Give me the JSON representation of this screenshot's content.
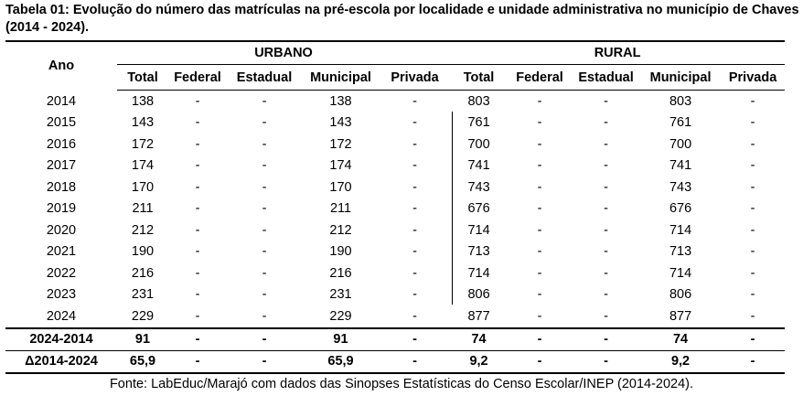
{
  "header": {
    "title": "Tabela 01: Evolução do número das matrículas na pré-escola por localidade e unidade administrativa no município de Chaves (2014 - 2024)."
  },
  "table": {
    "first_column": "Ano",
    "groups": [
      "URBANO",
      "RURAL"
    ],
    "columns": [
      "Total",
      "Federal",
      "Estadual",
      "Municipal",
      "Privada",
      "Total",
      "Federal",
      "Estadual",
      "Municipal",
      "Privada"
    ],
    "rows": [
      [
        "2014",
        "138",
        "-",
        "-",
        "138",
        "-",
        "803",
        "-",
        "-",
        "803",
        "-"
      ],
      [
        "2015",
        "143",
        "-",
        "-",
        "143",
        "-",
        "761",
        "-",
        "-",
        "761",
        "-"
      ],
      [
        "2016",
        "172",
        "-",
        "-",
        "172",
        "-",
        "700",
        "-",
        "-",
        "700",
        "-"
      ],
      [
        "2017",
        "174",
        "-",
        "-",
        "174",
        "-",
        "741",
        "-",
        "-",
        "741",
        "-"
      ],
      [
        "2018",
        "170",
        "-",
        "-",
        "170",
        "-",
        "743",
        "-",
        "-",
        "743",
        "-"
      ],
      [
        "2019",
        "211",
        "-",
        "-",
        "211",
        "-",
        "676",
        "-",
        "-",
        "676",
        "-"
      ],
      [
        "2020",
        "212",
        "-",
        "-",
        "212",
        "-",
        "714",
        "-",
        "-",
        "714",
        "-"
      ],
      [
        "2021",
        "190",
        "-",
        "-",
        "190",
        "-",
        "713",
        "-",
        "-",
        "713",
        "-"
      ],
      [
        "2022",
        "216",
        "-",
        "-",
        "216",
        "-",
        "714",
        "-",
        "-",
        "714",
        "-"
      ],
      [
        "2023",
        "231",
        "-",
        "-",
        "231",
        "-",
        "806",
        "-",
        "-",
        "806",
        "-"
      ],
      [
        "2024",
        "229",
        "-",
        "-",
        "229",
        "-",
        "877",
        "-",
        "-",
        "877",
        "-"
      ]
    ],
    "summary_rows": [
      [
        "2024-2014",
        "91",
        "-",
        "-",
        "91",
        "-",
        "74",
        "-",
        "-",
        "74",
        "-"
      ],
      [
        "Δ2014-2024",
        "65,9",
        "-",
        "-",
        "65,9",
        "-",
        "9,2",
        "-",
        "-",
        "9,2",
        "-"
      ]
    ]
  },
  "footer": {
    "source": "Fonte: LabEduc/Marajó com dados das Sinopses Estatísticas do Censo Escolar/INEP (2014-2024)."
  }
}
